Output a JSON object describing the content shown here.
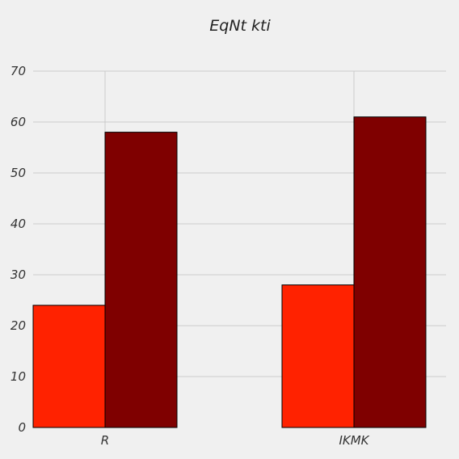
{
  "chart_data": {
    "type": "bar",
    "title": "EqNt  kti",
    "xlabel": "",
    "ylabel": "",
    "categories": [
      "R",
      "IKMK"
    ],
    "series": [
      {
        "values": [
          24,
          28
        ],
        "color": "#ff2200"
      },
      {
        "values": [
          58,
          61
        ],
        "color": "#7f0000"
      }
    ],
    "ylim": [
      0,
      70
    ],
    "yticks": [
      "0",
      "10",
      "20",
      "30",
      "40",
      "50",
      "60",
      "70"
    ],
    "grid": true,
    "legend": "none",
    "background_color": "#f0f0f0",
    "grid_color": "#cbcbcb",
    "edge_color": "#000000"
  }
}
